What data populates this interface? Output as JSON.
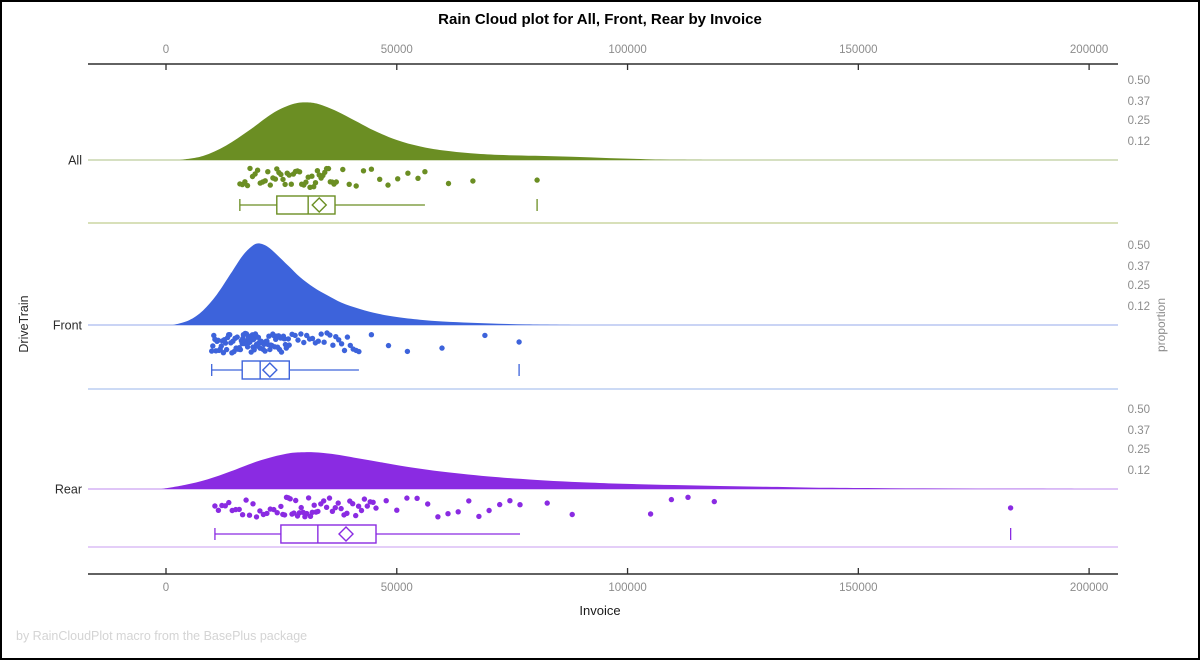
{
  "title": "Rain Cloud plot for All, Front, Rear by Invoice",
  "footer": "by RainCloudPlot macro from the BasePlus package",
  "chart_data": {
    "type": "raincloud",
    "title": "Rain Cloud plot for All, Front, Rear by Invoice",
    "xlabel": "Invoice",
    "ylabel_left": "DriveTrain",
    "ylabel_right": "proportion",
    "x_ticks": [
      0,
      50000,
      100000,
      150000,
      200000
    ],
    "x_range": [
      -16900,
      206260
    ],
    "proportion_ticks": [
      "0.50",
      "0.37",
      "0.25",
      "0.12"
    ],
    "proportion_tick_values": [
      0.5,
      0.37,
      0.25,
      0.12
    ],
    "grid": "off",
    "colors": {
      "axis_line": "#2f2f2f",
      "tick_label": "#8c8c8c",
      "category_label": "#2b2b2b"
    },
    "groups": [
      {
        "label": "All",
        "color": "#6B8E23",
        "color_light": "#CBD5A2",
        "box": {
          "whisker_low": 16000,
          "q1": 24000,
          "median": 30800,
          "q3": 36600,
          "mean": 33200,
          "whisker_high": 56100,
          "max_tick": 80400
        },
        "density": [
          [
            3000,
            0
          ],
          [
            8000,
            0.025
          ],
          [
            13000,
            0.09
          ],
          [
            18000,
            0.185
          ],
          [
            23000,
            0.29
          ],
          [
            27000,
            0.345
          ],
          [
            30000,
            0.36
          ],
          [
            33000,
            0.35
          ],
          [
            37000,
            0.305
          ],
          [
            41000,
            0.245
          ],
          [
            45000,
            0.185
          ],
          [
            50000,
            0.125
          ],
          [
            55000,
            0.085
          ],
          [
            60000,
            0.06
          ],
          [
            66000,
            0.042
          ],
          [
            72000,
            0.032
          ],
          [
            80000,
            0.026
          ],
          [
            88000,
            0.02
          ],
          [
            96000,
            0.012
          ],
          [
            104000,
            0.005
          ],
          [
            112000,
            0.001
          ],
          [
            118000,
            0
          ]
        ],
        "points": [
          16000,
          16550,
          17100,
          17650,
          18200,
          18750,
          19300,
          19850,
          20400,
          20950,
          21500,
          22050,
          22600,
          23150,
          23700,
          24000,
          24450,
          24900,
          25350,
          25800,
          26250,
          26700,
          27150,
          27600,
          28050,
          28500,
          28950,
          29400,
          29850,
          30300,
          30800,
          31200,
          31600,
          32000,
          32400,
          32800,
          33200,
          33600,
          34000,
          34400,
          34800,
          35200,
          35600,
          36000,
          36400,
          36900,
          38300,
          39700,
          41200,
          42800,
          44500,
          46300,
          48100,
          50200,
          52400,
          54600,
          56100,
          61200,
          66500,
          80400
        ]
      },
      {
        "label": "Front",
        "color": "#3D63DB",
        "color_light": "#BCCDF2",
        "box": {
          "whisker_low": 9900,
          "q1": 16500,
          "median": 20400,
          "q3": 26700,
          "mean": 22500,
          "whisker_high": 41800,
          "max_tick": 76500
        },
        "density": [
          [
            1500,
            0
          ],
          [
            5000,
            0.03
          ],
          [
            8000,
            0.09
          ],
          [
            11000,
            0.19
          ],
          [
            14000,
            0.32
          ],
          [
            16500,
            0.43
          ],
          [
            18500,
            0.49
          ],
          [
            20000,
            0.51
          ],
          [
            22000,
            0.49
          ],
          [
            24000,
            0.44
          ],
          [
            26500,
            0.37
          ],
          [
            29000,
            0.3
          ],
          [
            32000,
            0.235
          ],
          [
            35000,
            0.185
          ],
          [
            38000,
            0.14
          ],
          [
            42000,
            0.1
          ],
          [
            46000,
            0.07
          ],
          [
            50000,
            0.05
          ],
          [
            55000,
            0.033
          ],
          [
            60000,
            0.022
          ],
          [
            66000,
            0.014
          ],
          [
            72000,
            0.008
          ],
          [
            78000,
            0.004
          ],
          [
            84000,
            0.001
          ],
          [
            88000,
            0
          ]
        ],
        "points": [
          9900,
          10130,
          10360,
          10590,
          10820,
          11050,
          11280,
          11510,
          11740,
          11970,
          12200,
          12430,
          12660,
          12890,
          13120,
          13350,
          13580,
          13810,
          14040,
          14270,
          14500,
          14730,
          14960,
          15190,
          15420,
          15650,
          15880,
          16110,
          16340,
          16500,
          16630,
          16760,
          16890,
          17020,
          17150,
          17280,
          17410,
          17540,
          17670,
          17800,
          17930,
          18060,
          18190,
          18320,
          18450,
          18580,
          18710,
          18840,
          18970,
          19100,
          19230,
          19360,
          19490,
          19620,
          19750,
          19880,
          20010,
          20140,
          20270,
          20400,
          20610,
          20820,
          21030,
          21240,
          21450,
          21660,
          21870,
          22080,
          22290,
          22500,
          22710,
          22920,
          23130,
          23340,
          23550,
          23760,
          23970,
          24180,
          24390,
          24600,
          24810,
          25020,
          25230,
          25440,
          25650,
          25860,
          26070,
          26280,
          26490,
          26700,
          27330,
          27960,
          28590,
          29220,
          29850,
          30480,
          31110,
          31740,
          32370,
          33000,
          33630,
          34260,
          34890,
          35520,
          36150,
          36780,
          37410,
          38040,
          38670,
          39300,
          39930,
          40560,
          41190,
          41800,
          44500,
          48200,
          52300,
          59800,
          69100,
          76500
        ]
      },
      {
        "label": "Rear",
        "color": "#8A2BE2",
        "color_light": "#DCBDF5",
        "box": {
          "whisker_low": 10600,
          "q1": 24900,
          "median": 32900,
          "q3": 45500,
          "mean": 39000,
          "whisker_high": 76700,
          "max_tick": 183000
        },
        "density": [
          [
            -1000,
            0
          ],
          [
            4000,
            0.025
          ],
          [
            9000,
            0.06
          ],
          [
            14000,
            0.11
          ],
          [
            19000,
            0.165
          ],
          [
            23000,
            0.2
          ],
          [
            27000,
            0.225
          ],
          [
            30000,
            0.23
          ],
          [
            33000,
            0.228
          ],
          [
            37000,
            0.215
          ],
          [
            42000,
            0.19
          ],
          [
            47000,
            0.165
          ],
          [
            52000,
            0.14
          ],
          [
            58000,
            0.115
          ],
          [
            64000,
            0.095
          ],
          [
            70000,
            0.078
          ],
          [
            77000,
            0.063
          ],
          [
            84000,
            0.05
          ],
          [
            92000,
            0.04
          ],
          [
            100000,
            0.032
          ],
          [
            110000,
            0.025
          ],
          [
            120000,
            0.019
          ],
          [
            130000,
            0.014
          ],
          [
            140000,
            0.009
          ],
          [
            152000,
            0.006
          ],
          [
            164000,
            0.004
          ],
          [
            176000,
            0.002
          ],
          [
            188000,
            0.001
          ],
          [
            198000,
            0
          ]
        ],
        "points": [
          10600,
          11350,
          12100,
          12850,
          13600,
          14350,
          15100,
          15850,
          16600,
          17350,
          18100,
          18850,
          19600,
          20350,
          21100,
          21850,
          22600,
          23350,
          24100,
          24900,
          25300,
          25700,
          26100,
          26500,
          26900,
          27300,
          27700,
          28100,
          28500,
          28900,
          29300,
          29700,
          30100,
          30500,
          30900,
          31300,
          31700,
          32100,
          32500,
          32900,
          33530,
          34160,
          34790,
          35420,
          36050,
          36680,
          37310,
          37940,
          38570,
          39200,
          39830,
          40460,
          41090,
          41720,
          42350,
          42980,
          43610,
          44240,
          44870,
          45500,
          47700,
          50000,
          52200,
          54400,
          56700,
          58900,
          61100,
          63300,
          65600,
          67800,
          70000,
          72300,
          74500,
          76700,
          82600,
          88000,
          105000,
          109500,
          113100,
          118800,
          183000
        ]
      }
    ]
  }
}
